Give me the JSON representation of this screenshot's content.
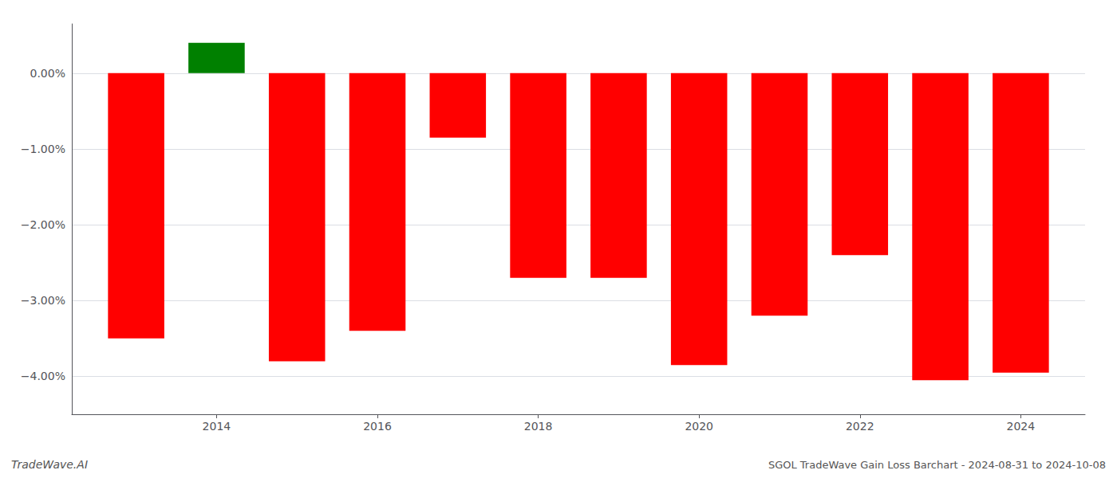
{
  "chart_data": {
    "type": "bar",
    "x": [
      2013,
      2014,
      2015,
      2016,
      2017,
      2018,
      2019,
      2020,
      2021,
      2022,
      2023,
      2024
    ],
    "values": [
      -3.5,
      0.4,
      -3.8,
      -3.4,
      -0.85,
      -2.7,
      -2.7,
      -3.85,
      -3.2,
      -2.4,
      -4.05,
      -3.95
    ],
    "colors": [
      "#ff0000",
      "#008000",
      "#ff0000",
      "#ff0000",
      "#ff0000",
      "#ff0000",
      "#ff0000",
      "#ff0000",
      "#ff0000",
      "#ff0000",
      "#ff0000",
      "#ff0000"
    ],
    "xlim": [
      2012.2,
      2024.8
    ],
    "xticks": [
      2014,
      2016,
      2018,
      2020,
      2022,
      2024
    ],
    "ylim": [
      -4.5,
      0.65
    ],
    "yticks": [
      {
        "value": 0.0,
        "label": "0.00%"
      },
      {
        "value": -1.0,
        "label": "−1.00%"
      },
      {
        "value": -2.0,
        "label": "−2.00%"
      },
      {
        "value": -3.0,
        "label": "−3.00%"
      },
      {
        "value": -4.0,
        "label": "−4.00%"
      }
    ],
    "annotations": [
      "TradeWave.AI",
      "SGOL TradeWave Gain Loss Barchart - 2024-08-31 to 2024-10-08"
    ],
    "grid": true
  }
}
